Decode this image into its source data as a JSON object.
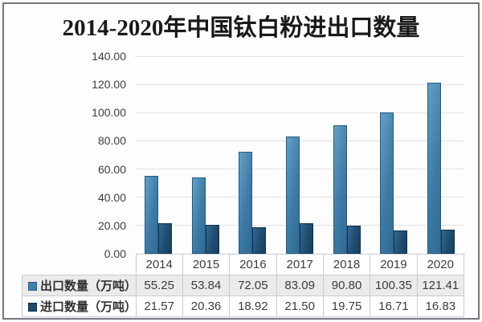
{
  "title": "2014-2020年中国钛白粉进出口数量",
  "colors": {
    "export_bar": "#3d7ba6",
    "import_bar": "#1f4d71",
    "gridline": "#e3e3e7",
    "table_border": "#c7cbd1",
    "shaded_row": "#ebebeb",
    "frame_border": "#76767e"
  },
  "chart_data": {
    "type": "bar",
    "title": "2014-2020年中国钛白粉进出口数量",
    "categories": [
      "2014",
      "2015",
      "2016",
      "2017",
      "2018",
      "2019",
      "2020"
    ],
    "series": [
      {
        "name": "出口数量（万吨）",
        "values": [
          55.25,
          53.84,
          72.05,
          83.09,
          90.8,
          100.35,
          121.41
        ]
      },
      {
        "name": "进口数量（万吨）",
        "values": [
          21.57,
          20.36,
          18.92,
          21.5,
          19.75,
          16.71,
          16.83
        ]
      }
    ],
    "xlabel": "",
    "ylabel": "",
    "ylim": [
      0,
      140
    ],
    "ytick_step": 20,
    "ytick_labels": [
      "0.00",
      "20.00",
      "40.00",
      "60.00",
      "80.00",
      "100.00",
      "120.00",
      "140.00"
    ],
    "grid": true,
    "legend_position": "table-left"
  },
  "table": {
    "columns": [
      "2014",
      "2015",
      "2016",
      "2017",
      "2018",
      "2019",
      "2020"
    ],
    "row_labels": [
      "出口数量（万吨）",
      "进口数量（万吨）"
    ],
    "rows": [
      [
        "55.25",
        "53.84",
        "72.05",
        "83.09",
        "90.80",
        "100.35",
        "121.41"
      ],
      [
        "21.57",
        "20.36",
        "18.92",
        "21.50",
        "19.75",
        "16.71",
        "16.83"
      ]
    ]
  }
}
